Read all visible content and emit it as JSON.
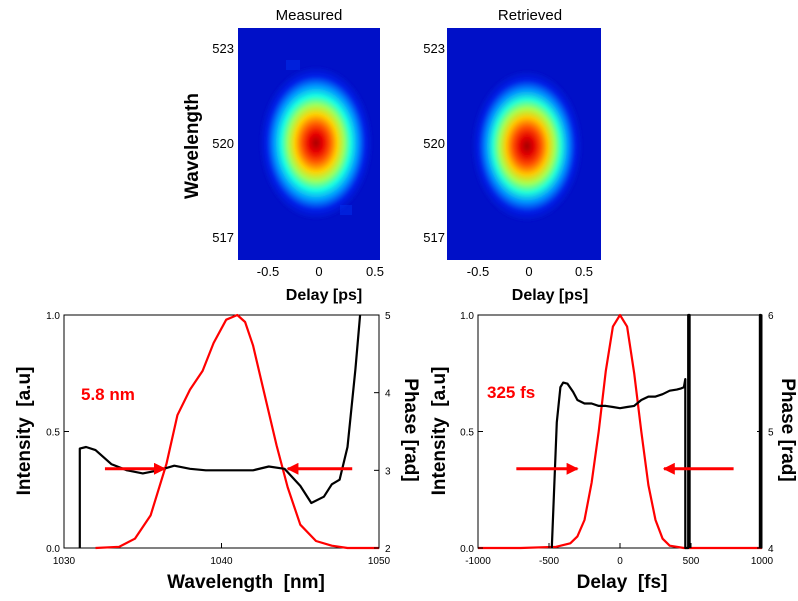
{
  "chart_data": [
    {
      "type": "heatmap",
      "title": "Measured",
      "xlabel": "Delay [ps]",
      "ylabel": "Wavelength",
      "xlim": [
        -0.8,
        0.8
      ],
      "ylim": [
        516.2,
        523.8
      ],
      "xticks": [
        -0.5,
        0,
        0.5
      ],
      "xtick_labels": [
        "-0.5",
        "0",
        "0.5"
      ],
      "yticks": [
        517,
        520,
        523
      ],
      "ytick_labels": [
        "517",
        "520",
        "523"
      ],
      "peak": {
        "delay": -0.05,
        "wavelength": 519.9
      },
      "colormap": "jet"
    },
    {
      "type": "heatmap",
      "title": "Retrieved",
      "xlabel": "Delay [ps]",
      "ylabel": "",
      "xlim": [
        -0.8,
        0.8
      ],
      "ylim": [
        516.2,
        523.8
      ],
      "xticks": [
        -0.5,
        0,
        0.5
      ],
      "xtick_labels": [
        "-0.5",
        "0",
        "0.5"
      ],
      "yticks": [
        517,
        520,
        523
      ],
      "ytick_labels": [
        "517",
        "520",
        "523"
      ],
      "peak": {
        "delay": 0.0,
        "wavelength": 519.8
      },
      "colormap": "jet"
    },
    {
      "type": "line",
      "xlabel": "Wavelength  [nm]",
      "ylabel": "Intensity  [a.u]",
      "y2label": "Phase [rad]",
      "xlim": [
        1030,
        1050
      ],
      "ylim": [
        0,
        1
      ],
      "y2lim": [
        2,
        5
      ],
      "xticks": [
        1030,
        1040,
        1050
      ],
      "xtick_labels": [
        "1030",
        "1040",
        "1050"
      ],
      "yticks": [
        0,
        0.5,
        1
      ],
      "ytick_labels": [
        "0.0",
        "0.5",
        "1.0"
      ],
      "y2ticks": [
        2,
        3,
        4,
        5
      ],
      "y2tick_labels": [
        "2",
        "3",
        "4",
        "5"
      ],
      "annotation": {
        "text": "5.8 nm",
        "color": "#ff0000"
      },
      "arrows": [
        {
          "x_from": 1032.6,
          "x_to": 1036.4,
          "y": 0.34
        },
        {
          "x_from": 1048.3,
          "x_to": 1044.2,
          "y": 0.34
        }
      ],
      "series": [
        {
          "color": "#ff0000",
          "axis": "left",
          "x": [
            1032,
            1033.5,
            1034.5,
            1035.5,
            1036.5,
            1037.2,
            1038,
            1038.8,
            1039.5,
            1040.3,
            1041,
            1041.5,
            1042,
            1042.8,
            1043.5,
            1044.2,
            1045,
            1046,
            1047,
            1048,
            1050
          ],
          "y": [
            0.0,
            0.005,
            0.04,
            0.14,
            0.36,
            0.57,
            0.68,
            0.76,
            0.88,
            0.98,
            1.0,
            0.97,
            0.87,
            0.64,
            0.44,
            0.26,
            0.1,
            0.03,
            0.01,
            0.0,
            0.0
          ]
        },
        {
          "color": "#000000",
          "axis": "right",
          "x": [
            1031,
            1031,
            1031.4,
            1032,
            1032.5,
            1033,
            1034,
            1035,
            1036,
            1037,
            1038,
            1039,
            1040,
            1041,
            1042,
            1043,
            1044,
            1045,
            1045.7,
            1046.5,
            1047,
            1047.5,
            1048,
            1048.5,
            1048.8
          ],
          "y": [
            2.0,
            3.28,
            3.3,
            3.26,
            3.17,
            3.08,
            3.0,
            2.96,
            3.0,
            3.06,
            3.02,
            3.0,
            3.0,
            3.0,
            3.0,
            3.05,
            3.02,
            2.8,
            2.58,
            2.66,
            2.82,
            2.88,
            3.3,
            4.3,
            5.0
          ]
        }
      ]
    },
    {
      "type": "line",
      "xlabel": "Delay  [fs]",
      "ylabel": "Intensity  [a.u]",
      "y2label": "Phase [rad]",
      "xlim": [
        -1000,
        1000
      ],
      "ylim": [
        0,
        1
      ],
      "y2lim": [
        4,
        6
      ],
      "xticks": [
        -1000,
        -500,
        0,
        500,
        1000
      ],
      "xtick_labels": [
        "-1000",
        "-500",
        "0",
        "500",
        "1000"
      ],
      "yticks": [
        0,
        0.5,
        1
      ],
      "ytick_labels": [
        "0.0",
        "0.5",
        "1.0"
      ],
      "y2ticks": [
        4,
        5,
        6
      ],
      "y2tick_labels": [
        "4",
        "5",
        "6"
      ],
      "annotation": {
        "text": "325 fs",
        "color": "#ff0000"
      },
      "arrows": [
        {
          "x_from": -730,
          "x_to": -300,
          "y": 0.34
        },
        {
          "x_from": 800,
          "x_to": 310,
          "y": 0.34
        }
      ],
      "series": [
        {
          "color": "#ff0000",
          "axis": "left",
          "x": [
            -1000,
            -700,
            -450,
            -350,
            -300,
            -250,
            -200,
            -150,
            -100,
            -50,
            0,
            50,
            100,
            150,
            200,
            250,
            300,
            350,
            450,
            700,
            1000
          ],
          "y": [
            0.0,
            0.0,
            0.005,
            0.02,
            0.05,
            0.12,
            0.28,
            0.5,
            0.76,
            0.95,
            1.0,
            0.95,
            0.75,
            0.5,
            0.27,
            0.12,
            0.04,
            0.01,
            0.0,
            0.0,
            0.0
          ]
        },
        {
          "color": "#000000",
          "axis": "right",
          "x": [
            -480,
            -445,
            -420,
            -400,
            -370,
            -330,
            -300,
            -250,
            -200,
            -150,
            -100,
            -50,
            0,
            50,
            100,
            150,
            200,
            250,
            300,
            350,
            400,
            430,
            450,
            460,
            460,
            480,
            480,
            490,
            490
          ],
          "y": [
            4.0,
            5.08,
            5.38,
            5.42,
            5.41,
            5.34,
            5.27,
            5.24,
            5.24,
            5.22,
            5.22,
            5.21,
            5.2,
            5.21,
            5.22,
            5.27,
            5.3,
            5.3,
            5.32,
            5.35,
            5.36,
            5.37,
            5.38,
            5.45,
            4.0,
            4.0,
            6.0,
            6.0,
            4.0
          ]
        },
        {
          "color": "#000000",
          "axis": "right",
          "x": [
            985,
            985,
            992,
            992
          ],
          "y": [
            4.0,
            6.0,
            6.0,
            4.0
          ]
        }
      ]
    }
  ]
}
